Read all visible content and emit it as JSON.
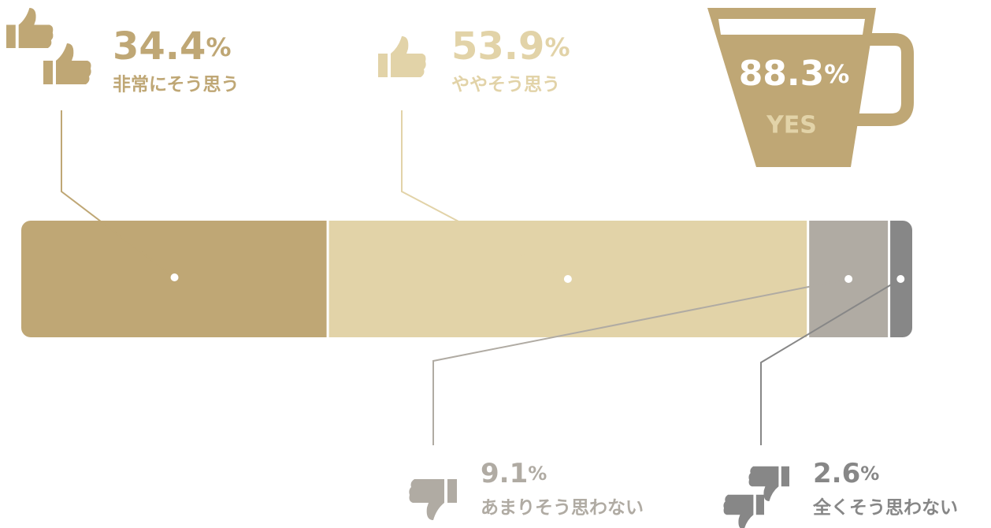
{
  "chart_data": {
    "type": "stacked-bar",
    "categories": [
      "非常にそう思う",
      "ややそう思う",
      "あまりそう思わない",
      "全くそう思わない"
    ],
    "values": [
      34.4,
      53.9,
      9.1,
      2.6
    ],
    "value_labels": [
      "34.4%",
      "53.9%",
      "9.1%",
      "2.6%"
    ],
    "colors": [
      "#bfa775",
      "#e2d3a8",
      "#b0aba3",
      "#878787"
    ],
    "xlim": [
      0,
      100
    ],
    "annotations": [
      "88.3%",
      "YES"
    ]
  }
}
